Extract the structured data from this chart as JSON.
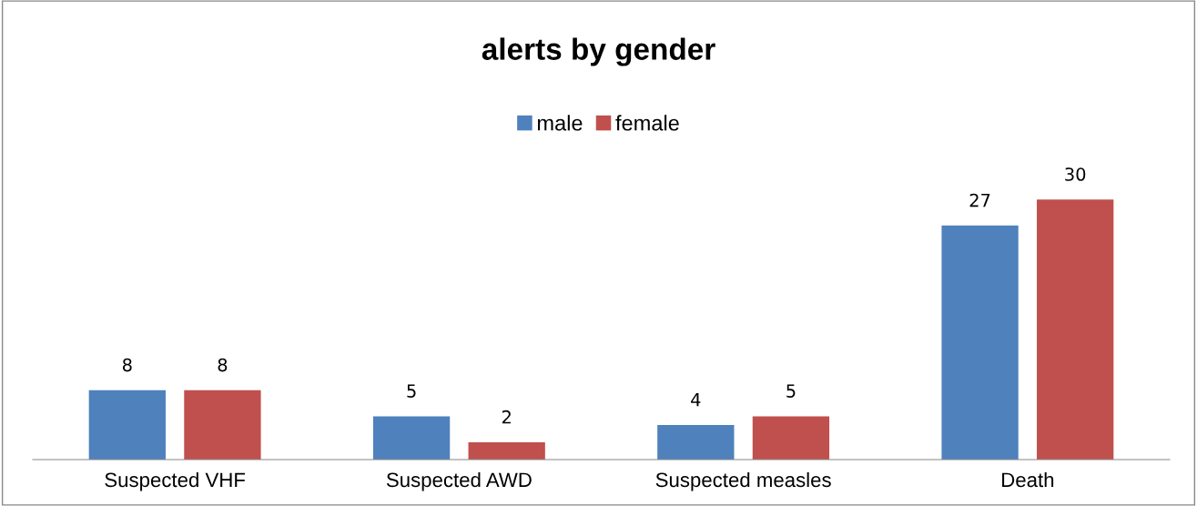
{
  "chart_data": {
    "type": "bar",
    "title": "alerts by gender",
    "categories": [
      "Suspected VHF",
      "Suspected AWD",
      "Suspected measles",
      "Death"
    ],
    "series": [
      {
        "name": "male",
        "color": "#4f81bd",
        "values": [
          8,
          5,
          4,
          27
        ]
      },
      {
        "name": "female",
        "color": "#c0504d",
        "values": [
          8,
          2,
          5,
          30
        ]
      }
    ],
    "data_labels": true,
    "legend": "top",
    "grid": false
  }
}
